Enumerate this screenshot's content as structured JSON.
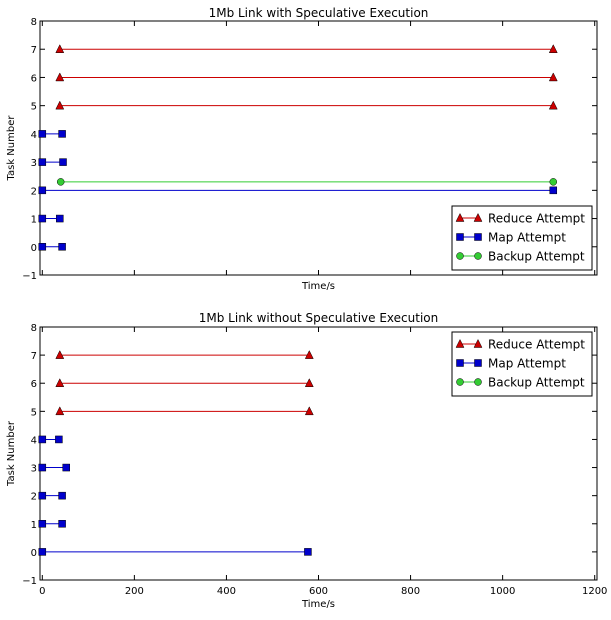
{
  "chart_data": [
    {
      "type": "line",
      "title": "1Mb Link with Speculative Execution",
      "xlabel": "Time/s",
      "ylabel": "Task Number",
      "xlim": [
        -5,
        1205
      ],
      "ylim": [
        -1,
        8
      ],
      "x_ticks_shown": false,
      "y_ticks": [
        "−1",
        "0",
        "1",
        "2",
        "3",
        "4",
        "5",
        "6",
        "7",
        "8"
      ],
      "legend_position": "lower-right",
      "series": [
        {
          "name": "Reduce Attempt",
          "color": "#cc0000",
          "marker": "triangle",
          "segments": [
            {
              "task": 5,
              "start": 38,
              "end": 1110
            },
            {
              "task": 6,
              "start": 38,
              "end": 1110
            },
            {
              "task": 7,
              "start": 38,
              "end": 1110
            }
          ]
        },
        {
          "name": "Map Attempt",
          "color": "#0000cc",
          "marker": "square",
          "segments": [
            {
              "task": 0,
              "start": 0,
              "end": 43
            },
            {
              "task": 1,
              "start": 0,
              "end": 38
            },
            {
              "task": 2,
              "start": 0,
              "end": 1110
            },
            {
              "task": 3,
              "start": 0,
              "end": 45
            },
            {
              "task": 4,
              "start": 0,
              "end": 43
            }
          ]
        },
        {
          "name": "Backup Attempt",
          "color": "#33cc33",
          "marker": "circle",
          "segments": [
            {
              "task": 2.3,
              "start": 40,
              "end": 1110
            }
          ]
        }
      ]
    },
    {
      "type": "line",
      "title": "1Mb Link without Speculative Execution",
      "xlabel": "Time/s",
      "ylabel": "Task Number",
      "xlim": [
        -5,
        1205
      ],
      "ylim": [
        -1,
        8
      ],
      "x_ticks": [
        "0",
        "200",
        "400",
        "600",
        "800",
        "1000",
        "1200"
      ],
      "x_tick_values": [
        0,
        200,
        400,
        600,
        800,
        1000,
        1200
      ],
      "y_ticks": [
        "−1",
        "0",
        "1",
        "2",
        "3",
        "4",
        "5",
        "6",
        "7",
        "8"
      ],
      "legend_position": "top-right",
      "series": [
        {
          "name": "Reduce Attempt",
          "color": "#cc0000",
          "marker": "triangle",
          "segments": [
            {
              "task": 5,
              "start": 38,
              "end": 580
            },
            {
              "task": 6,
              "start": 38,
              "end": 580
            },
            {
              "task": 7,
              "start": 38,
              "end": 580
            }
          ]
        },
        {
          "name": "Map Attempt",
          "color": "#0000cc",
          "marker": "square",
          "segments": [
            {
              "task": 0,
              "start": 0,
              "end": 577
            },
            {
              "task": 1,
              "start": 0,
              "end": 43
            },
            {
              "task": 2,
              "start": 0,
              "end": 43
            },
            {
              "task": 3,
              "start": 0,
              "end": 52
            },
            {
              "task": 4,
              "start": 0,
              "end": 36
            }
          ]
        },
        {
          "name": "Backup Attempt",
          "color": "#33cc33",
          "marker": "circle",
          "segments": []
        }
      ]
    }
  ]
}
